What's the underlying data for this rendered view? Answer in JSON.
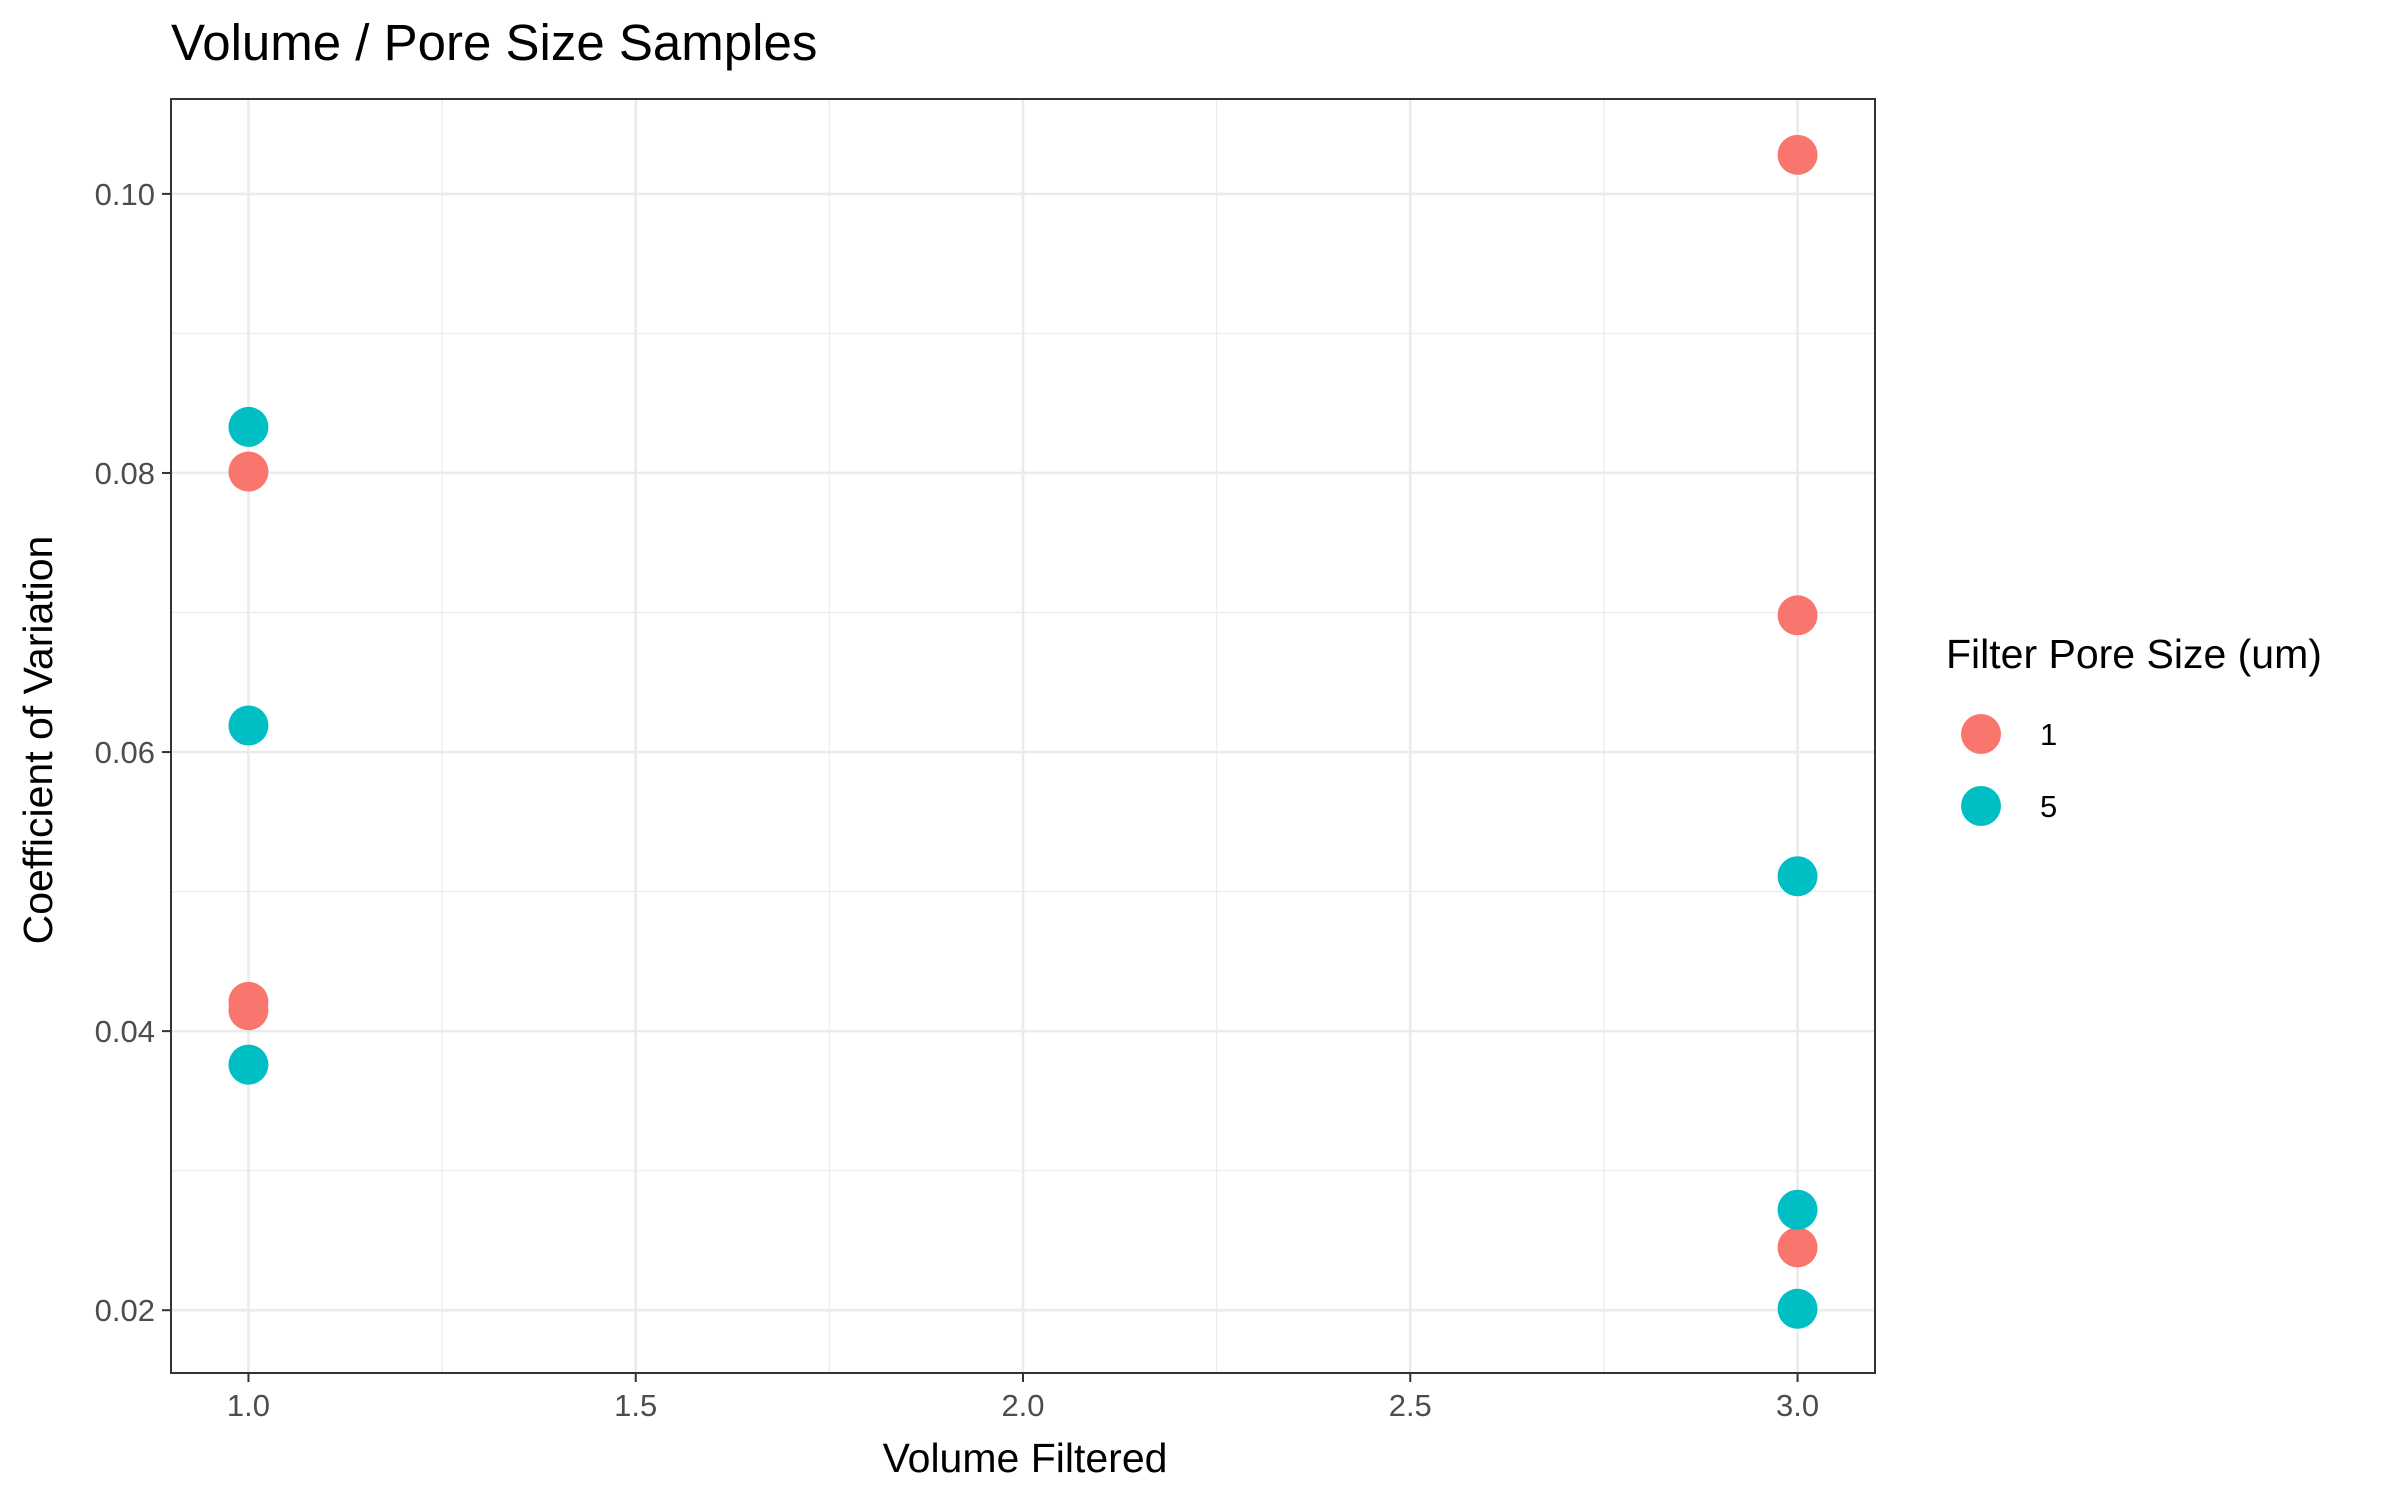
{
  "chart_data": {
    "type": "scatter",
    "title": "Volume / Pore Size Samples",
    "xlabel": "Volume Filtered",
    "ylabel": "Coefficient of Variation",
    "xlim": [
      0.9,
      3.1
    ],
    "ylim": [
      0.0155,
      0.1068
    ],
    "x_ticks": [
      1.0,
      1.5,
      2.0,
      2.5,
      3.0
    ],
    "x_tick_labels": [
      "1.0",
      "1.5",
      "2.0",
      "2.5",
      "3.0"
    ],
    "x_minor_ticks": [
      1.25,
      1.75,
      2.25,
      2.75
    ],
    "y_ticks": [
      0.02,
      0.04,
      0.06,
      0.08,
      0.1
    ],
    "y_tick_labels": [
      "0.02",
      "0.04",
      "0.06",
      "0.08",
      "0.10"
    ],
    "y_minor_ticks": [
      0.03,
      0.05,
      0.07,
      0.09
    ],
    "grid": true,
    "legend": {
      "title": "Filter Pore Size (um)",
      "position": "right"
    },
    "series": [
      {
        "name": "1",
        "color": "#F8766D",
        "points": [
          {
            "x": 1.0,
            "y": 0.0801
          },
          {
            "x": 1.0,
            "y": 0.0421
          },
          {
            "x": 1.0,
            "y": 0.0415
          },
          {
            "x": 3.0,
            "y": 0.1028
          },
          {
            "x": 3.0,
            "y": 0.0698
          },
          {
            "x": 3.0,
            "y": 0.0245
          }
        ]
      },
      {
        "name": "5",
        "color": "#00BFC4",
        "points": [
          {
            "x": 1.0,
            "y": 0.0833
          },
          {
            "x": 1.0,
            "y": 0.0619
          },
          {
            "x": 1.0,
            "y": 0.0376
          },
          {
            "x": 3.0,
            "y": 0.0511
          },
          {
            "x": 3.0,
            "y": 0.0272
          },
          {
            "x": 3.0,
            "y": 0.0201
          }
        ]
      }
    ]
  }
}
